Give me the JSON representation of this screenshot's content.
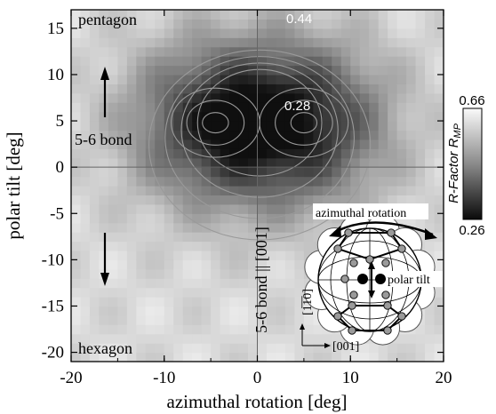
{
  "chart_data": {
    "type": "heatmap",
    "xlabel": "azimuthal rotation [deg]",
    "ylabel": "polar tilt [deg]",
    "xlim": [
      -20,
      20
    ],
    "ylim": [
      -21,
      17
    ],
    "x_ticks": [
      "-20",
      "-10",
      "0",
      "10",
      "20"
    ],
    "y_ticks": [
      "15",
      "10",
      "5",
      "0",
      "-5",
      "-10",
      "-15",
      "-20"
    ],
    "colorbar": {
      "label": "R-Factor R",
      "label_subscript": "MP",
      "max": "0.66",
      "min": "0.26"
    },
    "minima": [
      {
        "x": -4.5,
        "y": 4.8
      },
      {
        "x": 5.0,
        "y": 4.8
      }
    ],
    "annotations": {
      "top_left": "pentagon",
      "bottom_left": "hexagon",
      "mid_left": "5-6 bond",
      "vertical": "5-6 bond || [001]",
      "contour_outer": "0.44",
      "contour_inner": "0.28"
    },
    "inset": {
      "azimuthal_label": "azimuthal rotation",
      "polar_label": "polar tilt",
      "axis_x_label": "[001]",
      "axis_y_label": "[1̅1̅0]"
    }
  }
}
